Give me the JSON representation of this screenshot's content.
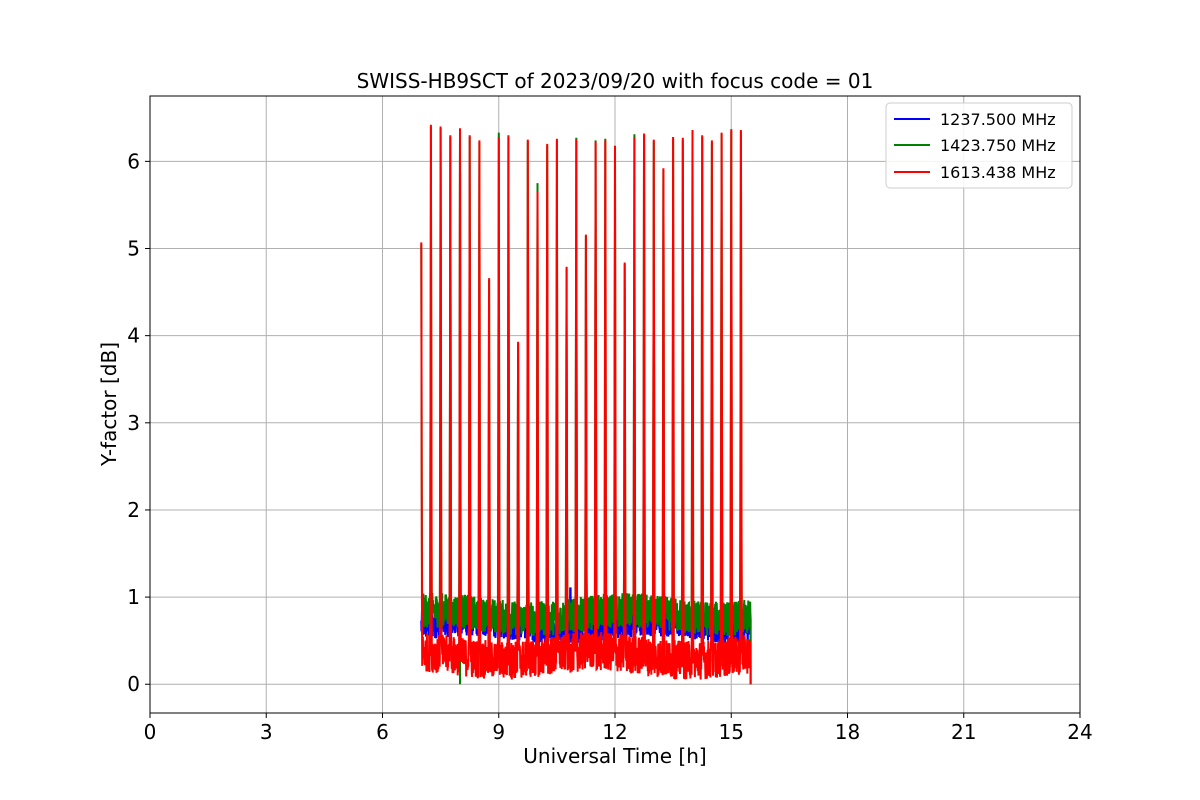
{
  "chart_data": {
    "type": "line",
    "title": "SWISS-HB9SCT of 2023/09/20 with focus code = 01",
    "xlabel": "Universal Time [h]",
    "ylabel": "Y-factor [dB]",
    "xlim": [
      0,
      24
    ],
    "ylim": [
      -0.33,
      6.75
    ],
    "x_ticks": [
      0,
      3,
      6,
      9,
      12,
      15,
      18,
      21,
      24
    ],
    "y_ticks": [
      0,
      1,
      2,
      3,
      4,
      5,
      6
    ],
    "grid": true,
    "legend_position": "top-right",
    "data_start_hour": 7.0,
    "data_end_hour": 15.5,
    "series": [
      {
        "name": "1237.500 MHz",
        "color": "#0000ff",
        "baseline_low": 0.5,
        "baseline_high": 0.85,
        "min_value": 0.0,
        "notable_peak": {
          "x": 10.85,
          "y": 1.1
        }
      },
      {
        "name": "1423.750 MHz",
        "color": "#008000",
        "baseline_low": 0.6,
        "baseline_high": 1.0,
        "min_value": 0.0
      },
      {
        "name": "1613.438 MHz",
        "color": "#ff0000",
        "baseline_low": 0.1,
        "baseline_high": 0.55,
        "min_value": 0.0
      }
    ],
    "spikes": [
      {
        "x": 7.0,
        "red": 5.07,
        "green": 5.05
      },
      {
        "x": 7.25,
        "red": 6.42,
        "green": 6.4
      },
      {
        "x": 7.5,
        "red": 6.4,
        "green": 6.38
      },
      {
        "x": 7.75,
        "red": 6.3,
        "green": 6.28
      },
      {
        "x": 8.0,
        "red": 6.38,
        "green": 6.36
      },
      {
        "x": 8.25,
        "red": 6.3,
        "green": 6.28
      },
      {
        "x": 8.5,
        "red": 6.24,
        "green": 6.22
      },
      {
        "x": 8.75,
        "red": 4.66,
        "green": 4.64
      },
      {
        "x": 9.0,
        "red": 6.28,
        "green": 6.33
      },
      {
        "x": 9.25,
        "red": 6.3,
        "green": 6.28
      },
      {
        "x": 9.5,
        "red": 3.93,
        "green": 3.91
      },
      {
        "x": 9.75,
        "red": 6.25,
        "green": 6.23
      },
      {
        "x": 10.0,
        "red": 5.65,
        "green": 5.75
      },
      {
        "x": 10.25,
        "red": 6.2,
        "green": 6.18
      },
      {
        "x": 10.5,
        "red": 6.26,
        "green": 6.24
      },
      {
        "x": 10.75,
        "red": 4.79,
        "green": 4.77
      },
      {
        "x": 11.0,
        "red": 6.25,
        "green": 6.27
      },
      {
        "x": 11.25,
        "red": 5.16,
        "green": 5.14
      },
      {
        "x": 11.5,
        "red": 6.22,
        "green": 6.24
      },
      {
        "x": 11.75,
        "red": 6.24,
        "green": 6.26
      },
      {
        "x": 12.0,
        "red": 6.18,
        "green": 6.16
      },
      {
        "x": 12.25,
        "red": 4.84,
        "green": 4.82
      },
      {
        "x": 12.5,
        "red": 6.28,
        "green": 6.31
      },
      {
        "x": 12.75,
        "red": 6.32,
        "green": 6.3
      },
      {
        "x": 13.0,
        "red": 6.25,
        "green": 6.23
      },
      {
        "x": 13.25,
        "red": 5.92,
        "green": 5.9
      },
      {
        "x": 13.5,
        "red": 6.28,
        "green": 6.26
      },
      {
        "x": 13.75,
        "red": 6.27,
        "green": 6.25
      },
      {
        "x": 14.0,
        "red": 6.36,
        "green": 6.34
      },
      {
        "x": 14.25,
        "red": 6.3,
        "green": 6.28
      },
      {
        "x": 14.5,
        "red": 6.24,
        "green": 6.22
      },
      {
        "x": 14.75,
        "red": 6.33,
        "green": 6.31
      },
      {
        "x": 15.0,
        "red": 6.37,
        "green": 6.35
      },
      {
        "x": 15.25,
        "red": 6.36,
        "green": 6.34
      }
    ]
  }
}
